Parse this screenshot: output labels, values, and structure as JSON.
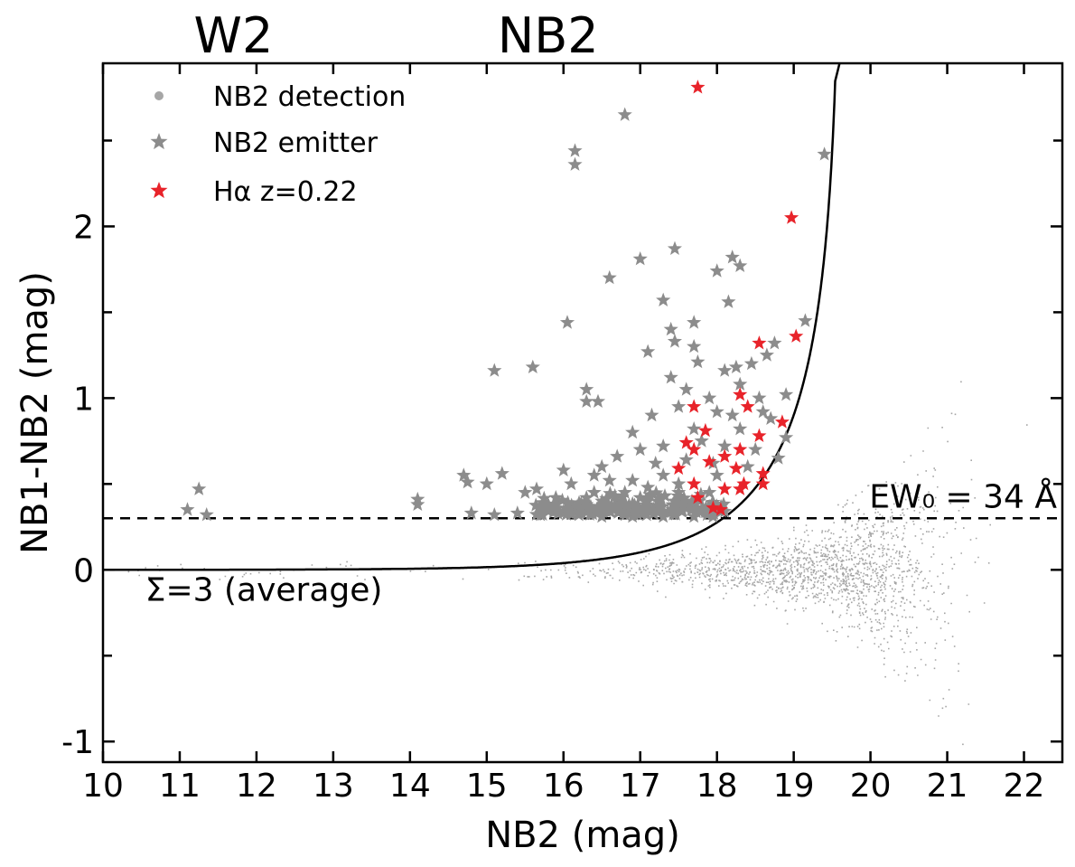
{
  "chart_data": {
    "type": "scatter",
    "xlabel": "NB2 (mag)",
    "ylabel": "NB1-NB2 (mag)",
    "xlim": [
      10,
      22.5
    ],
    "ylim": [
      -1.12,
      2.95
    ],
    "x_ticks": [
      10,
      11,
      12,
      13,
      14,
      15,
      16,
      17,
      18,
      19,
      20,
      21,
      22
    ],
    "y_ticks": [
      -1,
      0,
      1,
      2
    ],
    "x_tick_labels": [
      "10",
      "11",
      "12",
      "13",
      "14",
      "15",
      "16",
      "17",
      "18",
      "19",
      "20",
      "21",
      "22"
    ],
    "y_tick_labels": [
      "-1",
      "0",
      "1",
      "2"
    ],
    "grid": false,
    "legend_position": "top-left",
    "legend": [
      {
        "label": "NB2 detection",
        "marker": "dot",
        "color": "#a6a6a6"
      },
      {
        "label": "NB2 emitter",
        "marker": "star",
        "color": "#8c8c8c"
      },
      {
        "label": "Hα z=0.22",
        "marker": "star",
        "color": "#e8232a"
      }
    ],
    "top_labels": {
      "w2": "W2",
      "nb2": "NB2"
    },
    "top_label_x": {
      "w2": 11.7,
      "nb2": 15.8
    },
    "annotations": {
      "sigma": "Σ=3 (average)",
      "ew": "EW₀ = 34 Å"
    },
    "ew_threshold": 0.3,
    "sigma_curve": {
      "sigma": 3,
      "asymptote_x": 19.6,
      "start_x": 10
    },
    "series": [
      {
        "name": "NB2 emitter",
        "color": "#8c8c8c",
        "marker": "star",
        "points": [
          [
            11.1,
            0.35
          ],
          [
            11.25,
            0.47
          ],
          [
            11.35,
            0.32
          ],
          [
            14.1,
            0.41
          ],
          [
            14.1,
            0.38
          ],
          [
            14.7,
            0.55
          ],
          [
            14.75,
            0.51
          ],
          [
            14.8,
            0.33
          ],
          [
            15.0,
            0.5
          ],
          [
            15.1,
            0.32
          ],
          [
            15.2,
            0.56
          ],
          [
            15.1,
            1.16
          ],
          [
            15.6,
            1.18
          ],
          [
            15.5,
            0.45
          ],
          [
            15.65,
            0.47
          ],
          [
            16.05,
            1.44
          ],
          [
            16.15,
            2.44
          ],
          [
            16.15,
            2.36
          ],
          [
            16.3,
            1.05
          ],
          [
            16.3,
            0.98
          ],
          [
            16.45,
            0.98
          ],
          [
            16.6,
            1.7
          ],
          [
            16.8,
            2.65
          ],
          [
            17.0,
            1.81
          ],
          [
            17.1,
            1.27
          ],
          [
            17.3,
            1.57
          ],
          [
            17.45,
            1.87
          ],
          [
            17.4,
            1.4
          ],
          [
            17.45,
            1.33
          ],
          [
            17.7,
            1.44
          ],
          [
            17.7,
            1.3
          ],
          [
            17.75,
            1.21
          ],
          [
            17.5,
            0.95
          ],
          [
            17.4,
            1.12
          ],
          [
            17.6,
            1.05
          ],
          [
            17.9,
            1.0
          ],
          [
            18.0,
            1.74
          ],
          [
            18.2,
            1.82
          ],
          [
            18.3,
            1.77
          ],
          [
            18.15,
            1.56
          ],
          [
            18.1,
            1.16
          ],
          [
            18.25,
            1.18
          ],
          [
            18.45,
            1.2
          ],
          [
            18.65,
            1.25
          ],
          [
            18.75,
            1.32
          ],
          [
            18.55,
            1.0
          ],
          [
            18.7,
            0.88
          ],
          [
            18.9,
            1.02
          ],
          [
            19.15,
            1.45
          ],
          [
            19.4,
            2.42
          ],
          [
            17.15,
            0.9
          ],
          [
            16.9,
            0.8
          ],
          [
            16.5,
            0.6
          ],
          [
            16.1,
            0.5
          ],
          [
            16.8,
            0.45
          ],
          [
            17.3,
            0.55
          ],
          [
            17.6,
            0.64
          ],
          [
            18.0,
            0.55
          ],
          [
            15.9,
            0.42
          ],
          [
            16.4,
            0.55
          ],
          [
            15.9,
            0.36
          ],
          [
            16.3,
            0.38
          ],
          [
            16.8,
            0.36
          ],
          [
            17.2,
            0.35
          ],
          [
            17.6,
            0.36
          ],
          [
            16.0,
            0.34
          ],
          [
            16.6,
            0.34
          ],
          [
            17.0,
            0.33
          ],
          [
            17.4,
            0.34
          ],
          [
            17.8,
            0.34
          ],
          [
            18.1,
            0.34
          ],
          [
            15.7,
            0.32
          ],
          [
            16.2,
            0.32
          ],
          [
            16.5,
            0.31
          ],
          [
            16.9,
            0.31
          ],
          [
            17.3,
            0.31
          ],
          [
            17.7,
            0.31
          ],
          [
            17.95,
            0.31
          ],
          [
            15.4,
            0.33
          ],
          [
            16.7,
            0.4
          ],
          [
            17.0,
            0.42
          ],
          [
            17.5,
            0.45
          ],
          [
            17.9,
            0.45
          ],
          [
            16.4,
            0.45
          ],
          [
            17.2,
            0.62
          ],
          [
            17.0,
            0.7
          ],
          [
            16.6,
            0.52
          ],
          [
            17.8,
            0.75
          ],
          [
            18.3,
            0.82
          ],
          [
            18.5,
            0.7
          ],
          [
            18.8,
            0.65
          ],
          [
            18.9,
            0.77
          ],
          [
            18.4,
            0.6
          ],
          [
            18.2,
            0.9
          ],
          [
            17.95,
            0.62
          ],
          [
            16.9,
            0.52
          ],
          [
            17.5,
            0.5
          ],
          [
            17.1,
            0.48
          ],
          [
            16.3,
            0.42
          ],
          [
            15.8,
            0.38
          ],
          [
            16.0,
            0.58
          ],
          [
            16.7,
            0.66
          ],
          [
            17.3,
            0.72
          ],
          [
            17.7,
            0.82
          ],
          [
            18.1,
            0.72
          ],
          [
            18.6,
            0.92
          ],
          [
            18.3,
            1.08
          ],
          [
            18.0,
            0.92
          ]
        ]
      },
      {
        "name": "Hα z=0.22",
        "color": "#e8232a",
        "marker": "star",
        "points": [
          [
            17.75,
            2.81
          ],
          [
            18.97,
            2.05
          ],
          [
            18.55,
            1.32
          ],
          [
            19.03,
            1.36
          ],
          [
            18.3,
            1.02
          ],
          [
            17.7,
            0.95
          ],
          [
            18.4,
            0.95
          ],
          [
            18.85,
            0.86
          ],
          [
            17.85,
            0.81
          ],
          [
            18.55,
            0.78
          ],
          [
            17.6,
            0.74
          ],
          [
            17.7,
            0.7
          ],
          [
            18.3,
            0.7
          ],
          [
            18.1,
            0.66
          ],
          [
            17.9,
            0.63
          ],
          [
            17.5,
            0.59
          ],
          [
            18.25,
            0.59
          ],
          [
            18.6,
            0.56
          ],
          [
            17.7,
            0.5
          ],
          [
            18.35,
            0.5
          ],
          [
            18.6,
            0.5
          ],
          [
            18.1,
            0.47
          ],
          [
            18.3,
            0.47
          ],
          [
            17.75,
            0.42
          ],
          [
            17.95,
            0.36
          ],
          [
            18.05,
            0.35
          ]
        ]
      }
    ],
    "background_cloud": {
      "name": "NB2 detection",
      "color": "#a6a6a6",
      "marker": "dot",
      "x_range": [
        10.3,
        22.3
      ],
      "peak_x": 20.2,
      "y_center": 0.0
    }
  }
}
